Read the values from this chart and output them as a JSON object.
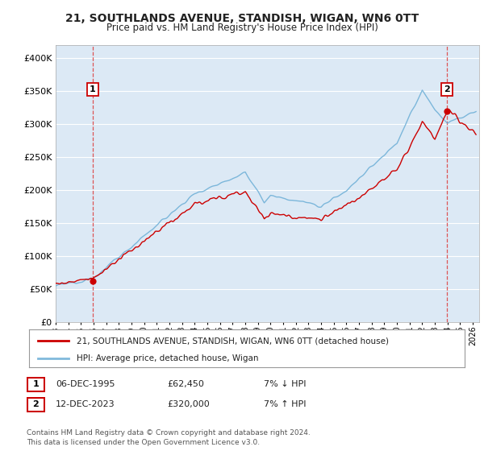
{
  "title": "21, SOUTHLANDS AVENUE, STANDISH, WIGAN, WN6 0TT",
  "subtitle": "Price paid vs. HM Land Registry's House Price Index (HPI)",
  "ylim": [
    0,
    420000
  ],
  "yticks": [
    0,
    50000,
    100000,
    150000,
    200000,
    250000,
    300000,
    350000,
    400000
  ],
  "ytick_labels": [
    "£0",
    "£50K",
    "£100K",
    "£150K",
    "£200K",
    "£250K",
    "£300K",
    "£350K",
    "£400K"
  ],
  "bg_color": "#ffffff",
  "plot_bg_color": "#dce9f5",
  "grid_color": "#ffffff",
  "hpi_color": "#6baed6",
  "price_color": "#cc0000",
  "sale1_x": 1995.92,
  "sale1_y": 62450,
  "sale2_x": 2023.95,
  "sale2_y": 320000,
  "legend_sale_label": "21, SOUTHLANDS AVENUE, STANDISH, WIGAN, WN6 0TT (detached house)",
  "legend_hpi_label": "HPI: Average price, detached house, Wigan",
  "note1_date": "06-DEC-1995",
  "note1_price": "£62,450",
  "note1_hpi": "7% ↓ HPI",
  "note2_date": "12-DEC-2023",
  "note2_price": "£320,000",
  "note2_hpi": "7% ↑ HPI",
  "footer": "Contains HM Land Registry data © Crown copyright and database right 2024.\nThis data is licensed under the Open Government Licence v3.0.",
  "xtick_start": 1993,
  "xtick_end": 2026
}
